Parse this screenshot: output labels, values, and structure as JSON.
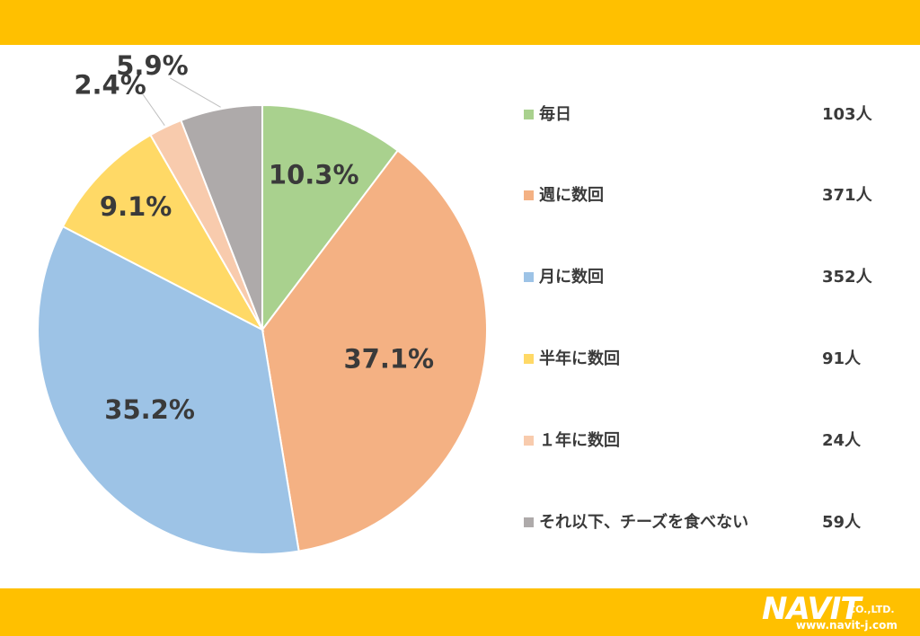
{
  "chart_data": {
    "type": "pie",
    "title": "",
    "categories": [
      "毎日",
      "週に数回",
      "月に数回",
      "半年に数回",
      "１年に数回",
      "それ以下、チーズを食べない"
    ],
    "values": [
      103,
      371,
      352,
      91,
      24,
      59
    ],
    "percent_labels": [
      "10.3%",
      "37.1%",
      "35.2%",
      "9.1%",
      "2.4%",
      "5.9%"
    ],
    "counts": [
      "103人",
      "371人",
      "352人",
      "91人",
      "24人",
      "59人"
    ],
    "colors": [
      "#A9D18E",
      "#F4B183",
      "#9DC3E6",
      "#FFD966",
      "#F8CBAD",
      "#AEAAAA"
    ],
    "legend_position": "right",
    "start_angle": "12 o'clock, clockwise"
  },
  "brand": {
    "name": "NAVIT",
    "suffix": "CO.,LTD.",
    "url": "www.navit-j.com"
  }
}
